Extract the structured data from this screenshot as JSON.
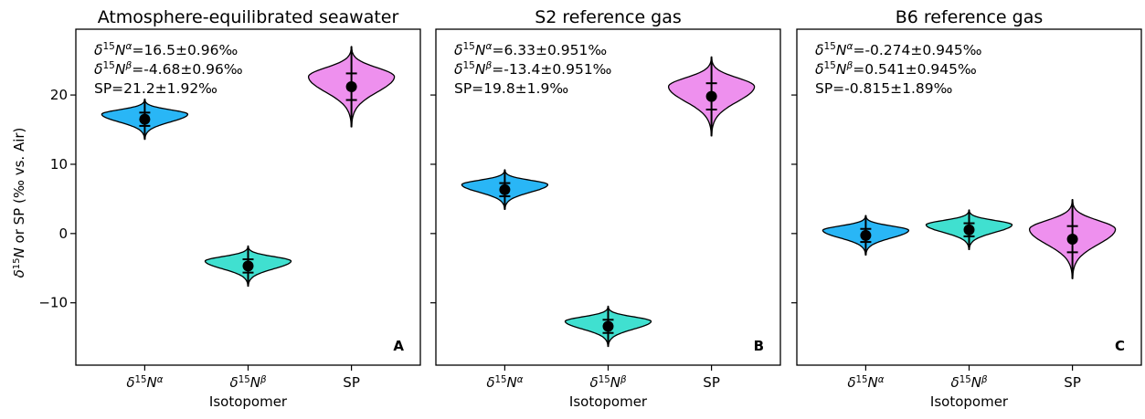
{
  "chart_data": {
    "type": "violin",
    "shared_ylabel": "δ¹⁵N  or SP (‰ vs. Air)",
    "ylim": [
      -19,
      29.5
    ],
    "yticks": [
      -10,
      0,
      10,
      20
    ],
    "categories": [
      "δ15Nα",
      "δ15Nβ",
      "SP"
    ],
    "colors": {
      "δ15Nα": "#29b6f6",
      "δ15Nβ": "#40e0d0",
      "SP": "#ee90ee"
    },
    "panels": [
      {
        "title": "Atmosphere-equilibrated seawater",
        "panel_label": "A",
        "xlabel": "Isotopomer",
        "annotations": [
          "δ15Nα=16.5±0.96‰",
          "δ15Nβ=-4.68±0.96‰",
          "SP=21.2±1.92‰"
        ],
        "series": [
          {
            "category": "δ15Nα",
            "mean": 16.5,
            "sd": 0.96,
            "min": 13.6,
            "max": 19.4
          },
          {
            "category": "δ15Nβ",
            "mean": -4.68,
            "sd": 0.96,
            "min": -7.6,
            "max": -1.8
          },
          {
            "category": "SP",
            "mean": 21.2,
            "sd": 1.92,
            "min": 15.4,
            "max": 27.0
          }
        ]
      },
      {
        "title": "S2 reference gas",
        "panel_label": "B",
        "xlabel": "Isotopomer",
        "annotations": [
          "δ15Nα=6.33±0.951‰",
          "δ15Nβ=-13.4±0.951‰",
          "SP=19.8±1.9‰"
        ],
        "series": [
          {
            "category": "δ15Nα",
            "mean": 6.33,
            "sd": 0.951,
            "min": 3.5,
            "max": 9.2
          },
          {
            "category": "δ15Nβ",
            "mean": -13.4,
            "sd": 0.951,
            "min": -16.3,
            "max": -10.5
          },
          {
            "category": "SP",
            "mean": 19.8,
            "sd": 1.9,
            "min": 14.1,
            "max": 25.5
          }
        ]
      },
      {
        "title": "B6 reference gas",
        "panel_label": "C",
        "xlabel": "Isotopomer",
        "annotations": [
          "δ15Nα=-0.274±0.945‰",
          "δ15Nβ=0.541±0.945‰",
          "SP=-0.815±1.89‰"
        ],
        "series": [
          {
            "category": "δ15Nα",
            "mean": -0.274,
            "sd": 0.945,
            "min": -3.1,
            "max": 2.6
          },
          {
            "category": "δ15Nβ",
            "mean": 0.541,
            "sd": 0.945,
            "min": -2.3,
            "max": 3.4
          },
          {
            "category": "SP",
            "mean": -0.815,
            "sd": 1.89,
            "min": -6.5,
            "max": 4.9
          }
        ]
      }
    ]
  }
}
